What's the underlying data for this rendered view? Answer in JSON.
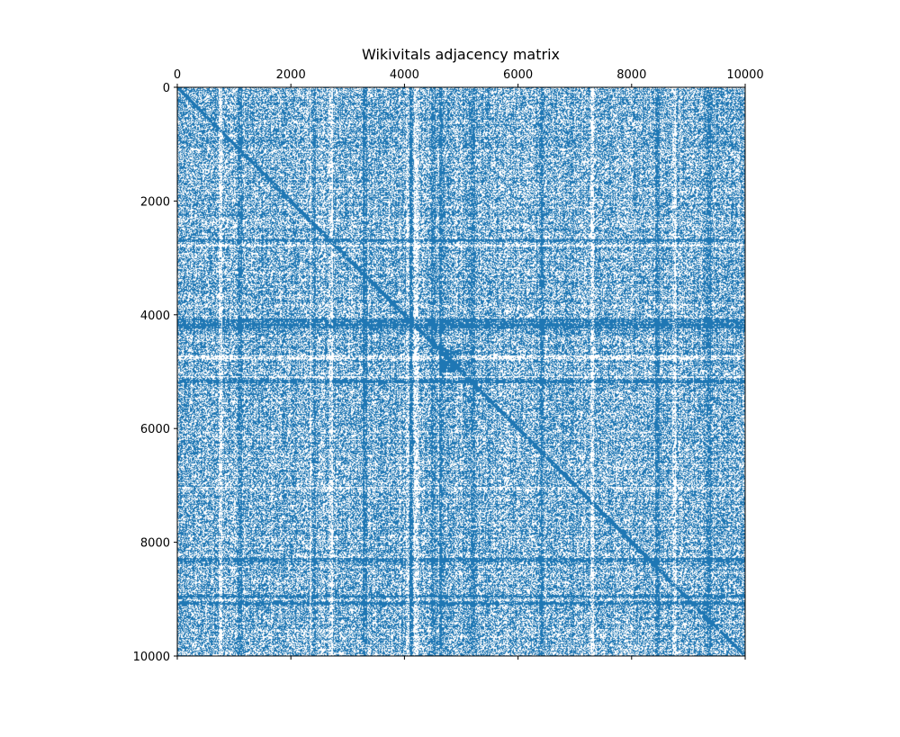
{
  "chart_data": {
    "type": "heatmap",
    "title": "Wikivitals adjacency matrix",
    "xlabel": "",
    "ylabel": "",
    "xlim": [
      0,
      10000
    ],
    "ylim": [
      0,
      10000
    ],
    "x_ticks": [
      0,
      2000,
      4000,
      6000,
      8000,
      10000
    ],
    "y_ticks": [
      0,
      2000,
      4000,
      6000,
      8000,
      10000
    ],
    "x_axis_position": "top",
    "y_axis_inverted": true,
    "grid": false,
    "marker_color": "#1f77b4",
    "background_color": "#ffffff",
    "density": 0.55,
    "diagonal_band": true,
    "dense_rows": [
      2700,
      4100,
      4150,
      4200,
      5150,
      8300,
      8950,
      9050
    ],
    "dense_cols": [
      1100,
      2400,
      3300,
      4100,
      4500,
      4650,
      5200,
      6400,
      8450,
      9350
    ],
    "sparse_rows": [
      2750,
      4750,
      5100,
      7050,
      9000
    ],
    "sparse_cols": [
      750,
      2350,
      2700,
      4050,
      4200,
      7300,
      8750
    ],
    "dense_blocks": [
      {
        "x": [
          4600,
          5000
        ],
        "y": [
          4600,
          5000
        ]
      }
    ]
  }
}
